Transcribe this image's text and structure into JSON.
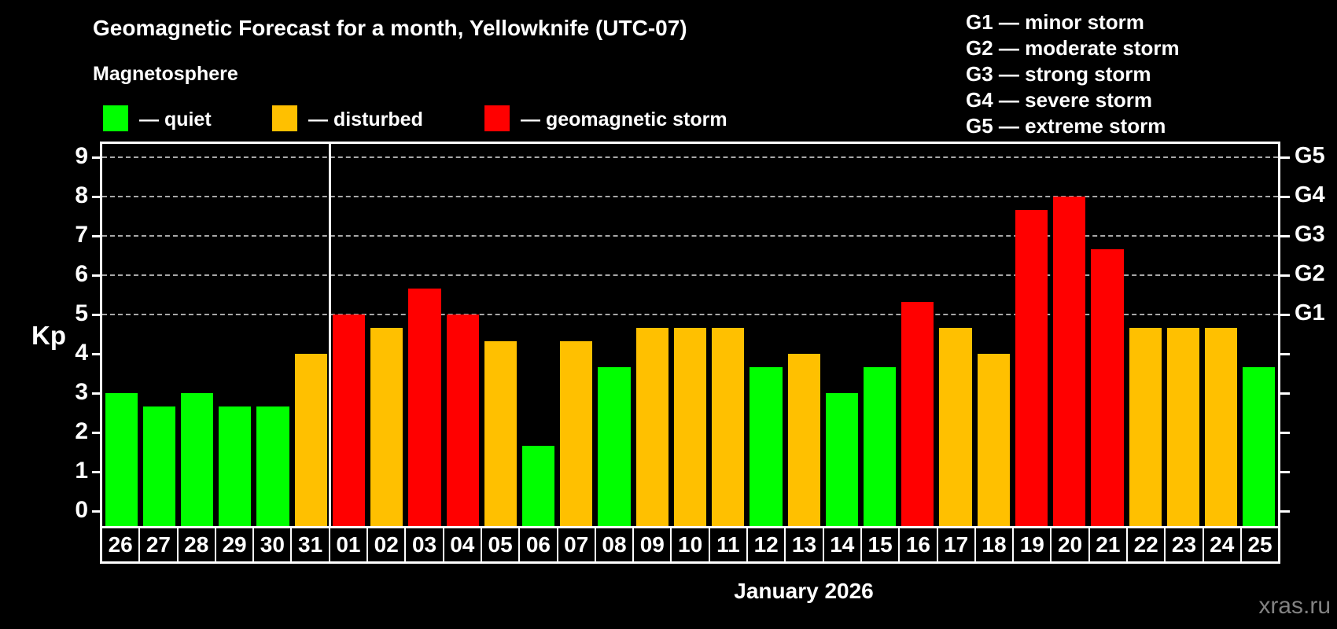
{
  "title": "Geomagnetic Forecast for a month, Yellowknife (UTC-07)",
  "subtitle": "Magnetosphere",
  "legend": {
    "items": [
      {
        "key": "quiet",
        "label": "— quiet",
        "color": "#00ff00"
      },
      {
        "key": "disturbed",
        "label": "— disturbed",
        "color": "#ffc000"
      },
      {
        "key": "storm",
        "label": "— geomagnetic storm",
        "color": "#ff0000"
      }
    ]
  },
  "storm_scale": [
    {
      "label": "G1 — minor storm"
    },
    {
      "label": "G2 — moderate storm"
    },
    {
      "label": "G3 — strong storm"
    },
    {
      "label": "G4 — severe storm"
    },
    {
      "label": "G5 — extreme storm"
    }
  ],
  "chart_data": {
    "type": "bar",
    "title": "Geomagnetic Forecast for a month, Yellowknife (UTC-07)",
    "xlabel": "January 2026",
    "ylabel": "Kp",
    "ylim": [
      0,
      9
    ],
    "y_ticks": [
      0,
      1,
      2,
      3,
      4,
      5,
      6,
      7,
      8,
      9
    ],
    "gridlines_at": [
      5,
      6,
      7,
      8,
      9
    ],
    "grid": "dashed horizontal at storm levels only",
    "legend_position": "top-left",
    "right_axis_labels": [
      {
        "kp": 5,
        "label": "G1"
      },
      {
        "kp": 6,
        "label": "G2"
      },
      {
        "kp": 7,
        "label": "G3"
      },
      {
        "kp": 8,
        "label": "G4"
      },
      {
        "kp": 9,
        "label": "G5"
      }
    ],
    "month_boundary_after_index": 5,
    "categories": [
      "26",
      "27",
      "28",
      "29",
      "30",
      "31",
      "01",
      "02",
      "03",
      "04",
      "05",
      "06",
      "07",
      "08",
      "09",
      "10",
      "11",
      "12",
      "13",
      "14",
      "15",
      "16",
      "17",
      "18",
      "19",
      "20",
      "21",
      "22",
      "23",
      "24",
      "25"
    ],
    "values": [
      3.0,
      2.67,
      3.0,
      2.67,
      2.67,
      4.0,
      5.0,
      4.67,
      5.67,
      5.0,
      4.33,
      1.67,
      4.33,
      3.67,
      4.67,
      4.67,
      4.67,
      3.67,
      4.0,
      3.0,
      3.67,
      5.33,
      4.67,
      4.0,
      7.67,
      8.0,
      6.67,
      4.67,
      4.67,
      4.67,
      3.67
    ],
    "statuses": [
      "quiet",
      "quiet",
      "quiet",
      "quiet",
      "quiet",
      "disturbed",
      "storm",
      "disturbed",
      "storm",
      "storm",
      "disturbed",
      "quiet",
      "disturbed",
      "quiet",
      "disturbed",
      "disturbed",
      "disturbed",
      "quiet",
      "disturbed",
      "quiet",
      "quiet",
      "storm",
      "disturbed",
      "disturbed",
      "storm",
      "storm",
      "storm",
      "disturbed",
      "disturbed",
      "disturbed",
      "quiet"
    ]
  },
  "xlabel": "January 2026",
  "watermark": "xras.ru",
  "colors": {
    "background": "#000000",
    "quiet": "#00ff00",
    "disturbed": "#ffc000",
    "storm": "#ff0000",
    "axis": "#ffffff",
    "grid": "#a8a8a8",
    "watermark": "#828282"
  }
}
